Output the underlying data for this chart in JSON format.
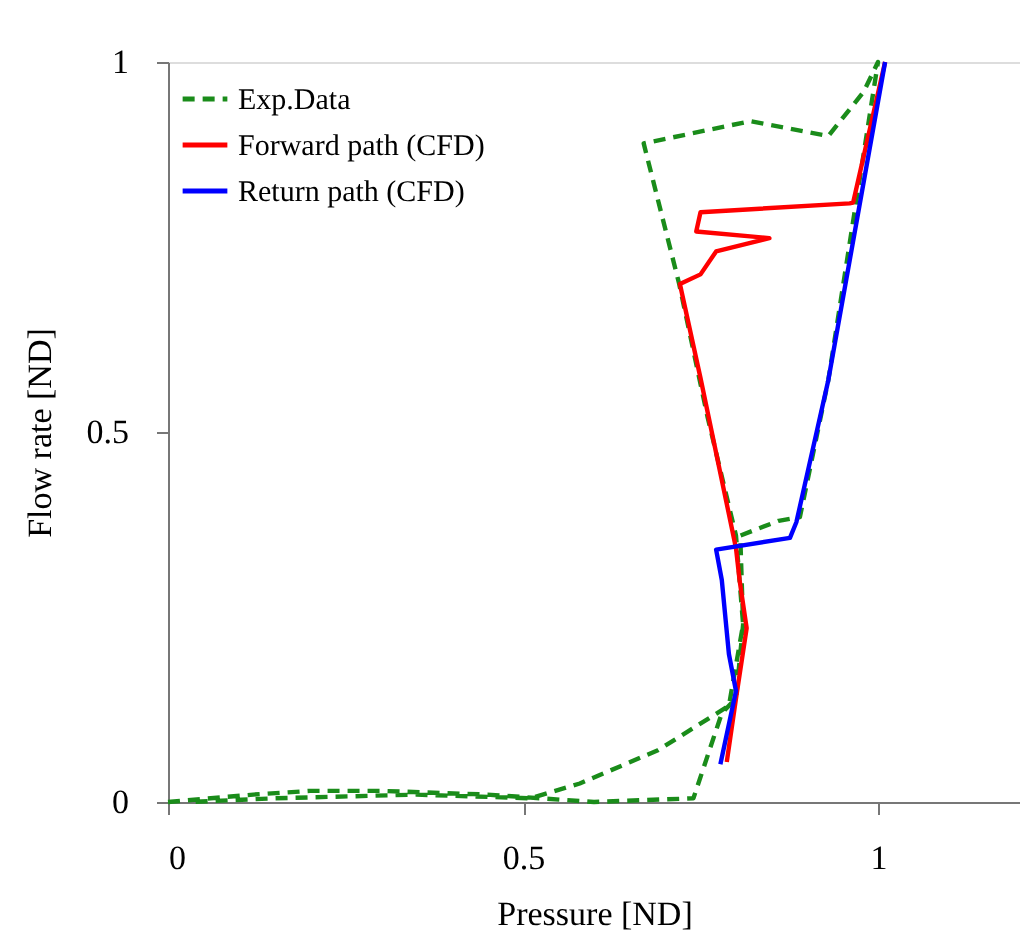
{
  "chart_data": {
    "type": "line",
    "xlabel": "Pressure [ND]",
    "ylabel": "Flow rate [ND]",
    "xlim": [
      0,
      1.2
    ],
    "ylim": [
      0,
      1
    ],
    "xticks": [
      0,
      0.5,
      1
    ],
    "yticks": [
      0,
      0.5,
      1
    ],
    "grid": false,
    "legend": "top left",
    "marker": "none",
    "series": [
      {
        "name": "Exp.Data",
        "color": "#1a8c1a",
        "line_style": "dashed",
        "x": [
          0,
          0.12,
          0.2,
          0.3,
          0.45,
          0.6,
          0.74,
          0.78,
          0.8,
          0.81,
          0.806,
          0.86,
          0.89,
          0.93,
          1.0,
          0.98,
          0.93,
          0.82,
          0.67,
          0.72,
          0.76,
          0.8,
          0.81,
          0.79,
          0.69,
          0.58,
          0.51,
          0.35,
          0.15,
          0.03
        ],
        "values": [
          0,
          0.01,
          0.015,
          0.015,
          0.01,
          0,
          0.005,
          0.12,
          0.14,
          0.24,
          0.36,
          0.38,
          0.385,
          0.57,
          1.0,
          0.96,
          0.9,
          0.92,
          0.89,
          0.7,
          0.52,
          0.36,
          0.24,
          0.13,
          0.07,
          0.025,
          0.005,
          0.01,
          0.005,
          0
        ]
      },
      {
        "name": "Forward path (CFD)",
        "color": "#ff0000",
        "line_style": "solid",
        "x": [
          0.787,
          0.8,
          0.815,
          0.805,
          0.8,
          0.75,
          0.721,
          0.75,
          0.772,
          0.847,
          0.744,
          0.75,
          0.96,
          0.965,
          1.01
        ],
        "values": [
          0.054,
          0.14,
          0.235,
          0.3,
          0.343,
          0.573,
          0.7,
          0.713,
          0.744,
          0.762,
          0.771,
          0.797,
          0.809,
          0.81,
          1.0
        ]
      },
      {
        "name": "Return path (CFD)",
        "color": "#0000ff",
        "line_style": "solid",
        "x": [
          1.01,
          0.93,
          0.885,
          0.876,
          0.772,
          0.78,
          0.79,
          0.8,
          0.778
        ],
        "values": [
          1.0,
          0.57,
          0.378,
          0.357,
          0.341,
          0.3,
          0.2,
          0.15,
          0.051
        ]
      }
    ]
  }
}
